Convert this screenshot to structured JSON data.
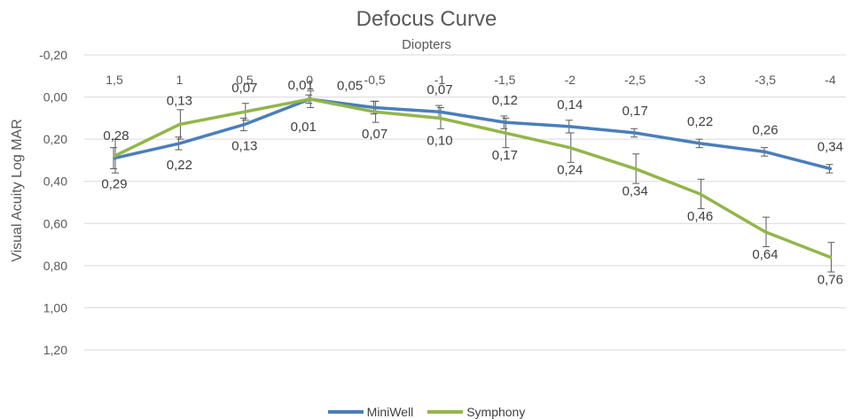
{
  "chart_data": {
    "type": "line",
    "title": "Defocus Curve",
    "subtitle": "Diopters",
    "xlabel": "Diopters",
    "ylabel": "Visual Acuity Log MAR",
    "categories": [
      "1,5",
      "1",
      "0,5",
      "0",
      "-0,5",
      "-1",
      "-1,5",
      "-2",
      "-2,5",
      "-3",
      "-3,5",
      "-4"
    ],
    "y_ticks": [
      "-0,20",
      "0,00",
      "0,20",
      "0,40",
      "0,60",
      "0,80",
      "1,00",
      "1,20"
    ],
    "ylim": [
      -0.2,
      1.2
    ],
    "y_inverted": true,
    "grid": "horizontal",
    "legend_position": "bottom",
    "series": [
      {
        "name": "MiniWell",
        "color": "#4a7ebb",
        "values": [
          0.29,
          0.22,
          0.13,
          0.01,
          0.05,
          0.07,
          0.12,
          0.14,
          0.17,
          0.22,
          0.26,
          0.34
        ],
        "labels": [
          "0,29",
          "0,22",
          "0,13",
          "0,01",
          "0,05",
          "0,07",
          "0,12",
          "0,14",
          "0,17",
          "0,22",
          "0,26",
          "0,34"
        ],
        "error": [
          0.05,
          0.03,
          0.03,
          0.02,
          0.03,
          0.03,
          0.03,
          0.03,
          0.02,
          0.02,
          0.02,
          0.02
        ]
      },
      {
        "name": "Symphony",
        "color": "#92b64a",
        "values": [
          0.28,
          0.13,
          0.07,
          0.01,
          0.07,
          0.1,
          0.17,
          0.24,
          0.34,
          0.46,
          0.64,
          0.76
        ],
        "labels": [
          "0,28",
          "0,13",
          "0,07",
          "0,01",
          "0,07",
          "0,10",
          "0,17",
          "0,24",
          "0,34",
          "0,46",
          "0,64",
          "0,76"
        ],
        "error": [
          0.08,
          0.07,
          0.04,
          0.04,
          0.05,
          0.05,
          0.07,
          0.07,
          0.07,
          0.07,
          0.07,
          0.07
        ]
      }
    ]
  }
}
